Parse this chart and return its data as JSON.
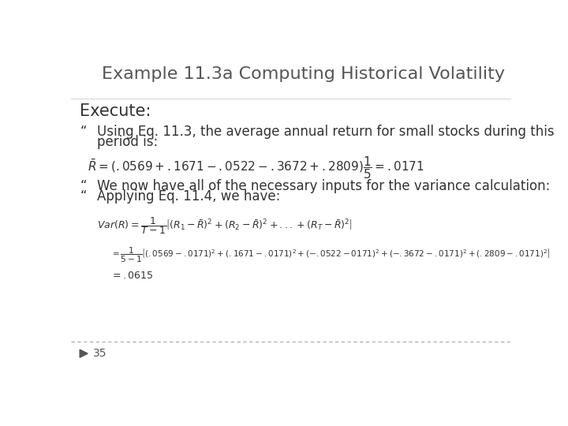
{
  "title": "Example 11.3a Computing Historical Volatility",
  "title_fontsize": 16,
  "title_color": "#555555",
  "bg_color": "#ffffff",
  "execute_label": "Execute:",
  "execute_fontsize": 15,
  "bullet_symbol": "“",
  "bullet1_line1": "Using Eq. 11.3, the average annual return for small stocks during this",
  "bullet1_line2": "period is:",
  "bullet2": "We now have all of the necessary inputs for the variance calculation:",
  "bullet3": "Applying Eq. 11.4, we have:",
  "eq1": "$\\mathit{\\bar{R}}=(.0569+.1671-.0522-.3672+.2809)\\dfrac{1}{5}=.0171$",
  "eq2": "$\\mathit{Var(R)}=\\dfrac{1}{T-1}\\left[(R_1-\\bar{R})^2+(R_2-\\bar{R})^2+...+(R_T-\\bar{R})^2\\right]$",
  "eq3": "$=\\dfrac{1}{5-1}\\left[(.0569-.0171)^2+(.1671-.0171)^2+(-.0522-0171)^2+(-.3672-.0171)^2+(.2809-.0171)^2\\right]$",
  "eq4": "$=.0615$",
  "footer_text": "35",
  "text_color": "#333333",
  "bullet_fontsize": 12,
  "eq1_fontsize": 11,
  "eq2_fontsize": 9,
  "eq3_fontsize": 7.5,
  "eq4_fontsize": 9,
  "footer_color": "#555555"
}
